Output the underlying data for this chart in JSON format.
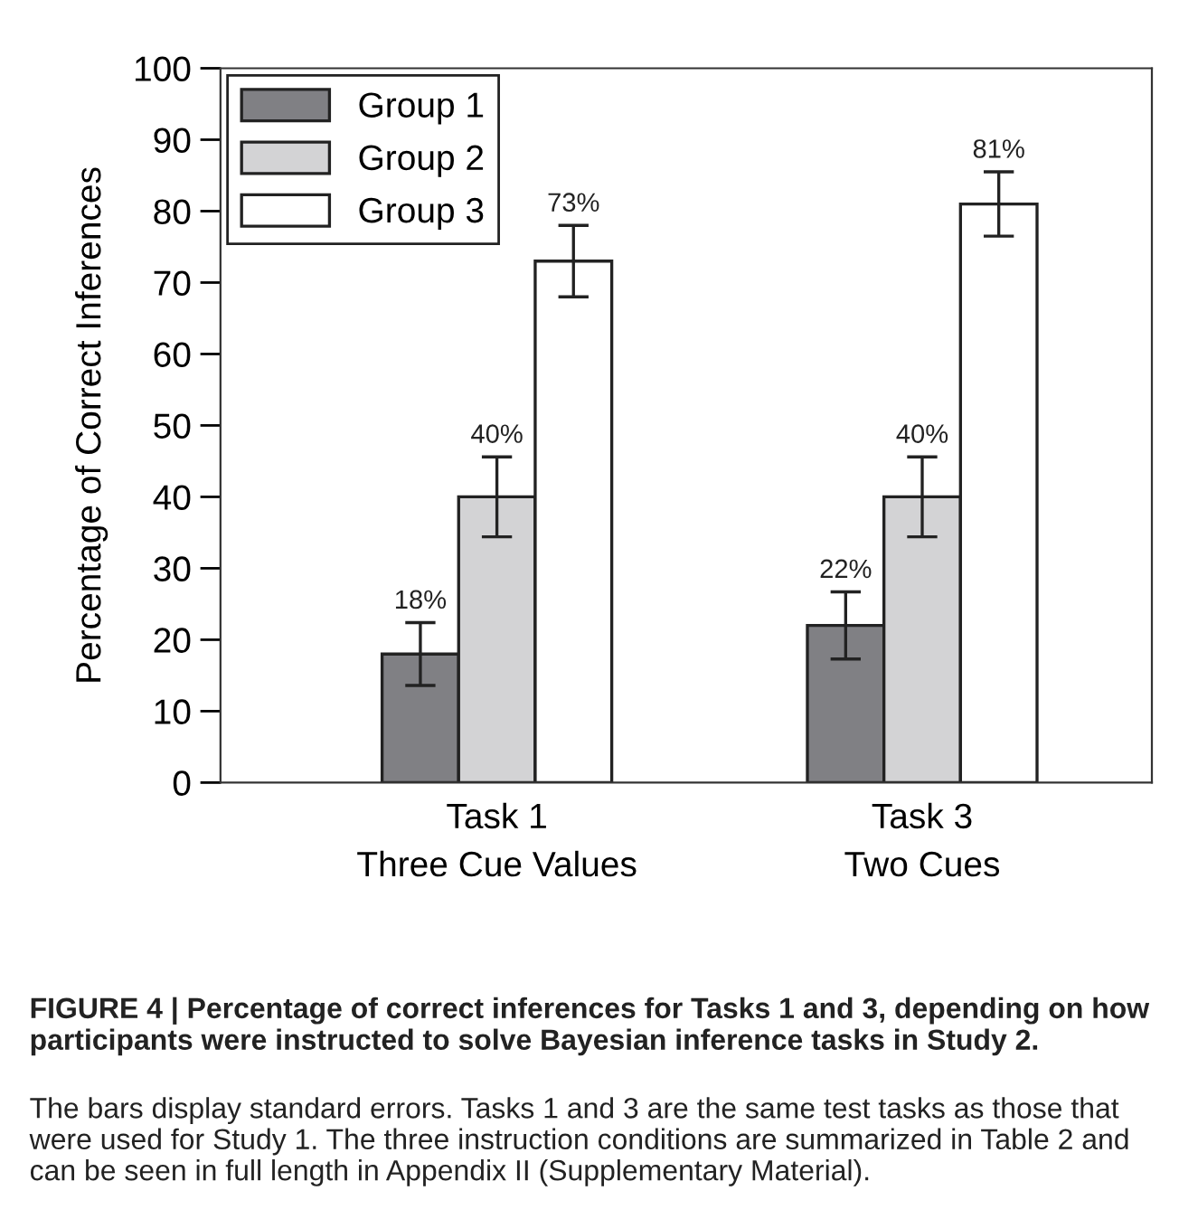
{
  "chart_data": {
    "type": "bar",
    "ylabel": "Percentage of Correct Inferences",
    "categories": [
      "Task 1\nThree Cue Values",
      "Task 3\nTwo Cues"
    ],
    "series": [
      {
        "name": "Group 1",
        "color": "#808084",
        "values": [
          18,
          22
        ],
        "errors": [
          4.4,
          4.7
        ],
        "value_labels": [
          "18%",
          "22%"
        ]
      },
      {
        "name": "Group 2",
        "color": "#d3d3d5",
        "values": [
          40,
          40
        ],
        "errors": [
          5.6,
          5.6
        ],
        "value_labels": [
          "40%",
          "40%"
        ]
      },
      {
        "name": "Group 3",
        "color": "#ffffff",
        "values": [
          73,
          81
        ],
        "errors": [
          5,
          4.5
        ],
        "value_labels": [
          "73%",
          "81%"
        ]
      }
    ],
    "ylim": [
      0,
      100
    ],
    "yticks": [
      0,
      10,
      20,
      30,
      40,
      50,
      60,
      70,
      80,
      90,
      100
    ],
    "legend": "top left",
    "grid": false,
    "annotations": [
      "FIGURE 4 | Percentage of correct inferences for Tasks 1 and 3, depending on how participants were instructed to solve Bayesian inference tasks in Study 2.",
      "The bars display standard errors. Tasks 1 and 3 are the same test tasks as those that were used for Study 1. The three instruction conditions are summarized in Table 2 and can be seen in full length in Appendix II (Supplementary Material)."
    ]
  }
}
